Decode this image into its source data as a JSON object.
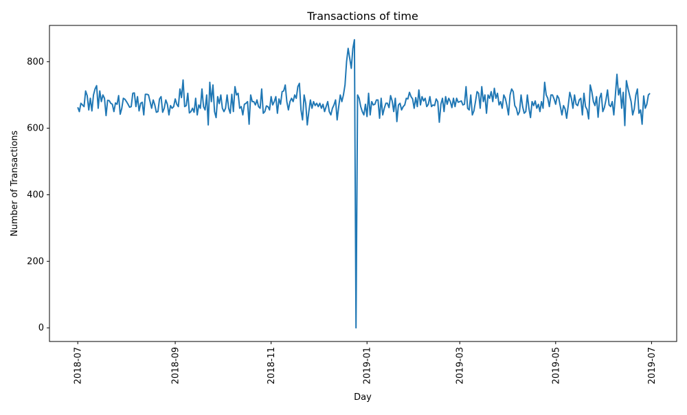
{
  "chart_data": {
    "type": "line",
    "title": "Transactions of time",
    "xlabel": "Day",
    "ylabel": "Number of Transactions",
    "x_range": [
      "2018-07-01",
      "2019-06-30"
    ],
    "x_frequency": "daily",
    "xlim": [
      "2018-06-13",
      "2019-07-17"
    ],
    "ylim": [
      -41,
      909
    ],
    "x_ticks": [
      "2018-07",
      "2018-09",
      "2018-11",
      "2019-01",
      "2019-03",
      "2019-05",
      "2019-07"
    ],
    "y_ticks": [
      0,
      200,
      400,
      600,
      800
    ],
    "grid": false,
    "line_color": "#1f77b4",
    "values": [
      663,
      650,
      675,
      670,
      665,
      712,
      698,
      655,
      690,
      652,
      700,
      718,
      728,
      660,
      712,
      680,
      700,
      690,
      638,
      684,
      683,
      675,
      672,
      650,
      676,
      672,
      698,
      642,
      660,
      690,
      687,
      680,
      672,
      663,
      665,
      705,
      706,
      665,
      695,
      652,
      675,
      678,
      640,
      702,
      702,
      700,
      680,
      660,
      685,
      670,
      648,
      650,
      688,
      695,
      648,
      660,
      685,
      672,
      640,
      668,
      660,
      665,
      688,
      672,
      665,
      718,
      692,
      745,
      665,
      668,
      705,
      646,
      650,
      660,
      648,
      690,
      640,
      670,
      660,
      718,
      665,
      655,
      700,
      610,
      738,
      680,
      730,
      650,
      632,
      695,
      674,
      700,
      660,
      650,
      660,
      700,
      660,
      645,
      702,
      650,
      725,
      700,
      705,
      660,
      665,
      640,
      672,
      675,
      680,
      612,
      700,
      680,
      680,
      670,
      685,
      665,
      660,
      718,
      645,
      650,
      667,
      665,
      655,
      695,
      670,
      680,
      695,
      645,
      688,
      672,
      710,
      712,
      730,
      680,
      655,
      680,
      690,
      680,
      700,
      690,
      725,
      735,
      655,
      625,
      700,
      675,
      610,
      650,
      685,
      660,
      680,
      668,
      675,
      665,
      675,
      660,
      672,
      650,
      665,
      680,
      650,
      640,
      660,
      670,
      685,
      625,
      665,
      700,
      680,
      700,
      730,
      800,
      840,
      810,
      780,
      840,
      866,
      0,
      700,
      690,
      665,
      650,
      640,
      672,
      635,
      705,
      640,
      680,
      670,
      672,
      685,
      685,
      630,
      690,
      640,
      660,
      675,
      675,
      662,
      698,
      682,
      650,
      690,
      620,
      670,
      675,
      655,
      665,
      670,
      690,
      688,
      708,
      695,
      688,
      660,
      692,
      665,
      715,
      670,
      695,
      682,
      690,
      665,
      672,
      695,
      665,
      670,
      668,
      688,
      680,
      618,
      672,
      690,
      650,
      695,
      672,
      690,
      680,
      662,
      690,
      665,
      690,
      678,
      680,
      682,
      670,
      672,
      725,
      660,
      655,
      700,
      640,
      652,
      680,
      710,
      705,
      660,
      725,
      680,
      700,
      645,
      700,
      690,
      710,
      680,
      720,
      690,
      705,
      670,
      680,
      660,
      700,
      690,
      668,
      640,
      700,
      718,
      710,
      668,
      660,
      640,
      650,
      700,
      665,
      645,
      650,
      700,
      660,
      632,
      680,
      668,
      682,
      660,
      672,
      650,
      680,
      660,
      738,
      700,
      690,
      665,
      700,
      700,
      688,
      672,
      698,
      690,
      665,
      640,
      668,
      658,
      630,
      668,
      708,
      690,
      660,
      700,
      672,
      668,
      685,
      690,
      640,
      705,
      665,
      656,
      628,
      730,
      710,
      680,
      668,
      695,
      633,
      690,
      705,
      650,
      662,
      685,
      715,
      670,
      665,
      680,
      640,
      700,
      762,
      700,
      720,
      660,
      708,
      608,
      743,
      720,
      700,
      680,
      640,
      658,
      700,
      718,
      645,
      655,
      612,
      697,
      660,
      672,
      700,
      705
    ]
  }
}
